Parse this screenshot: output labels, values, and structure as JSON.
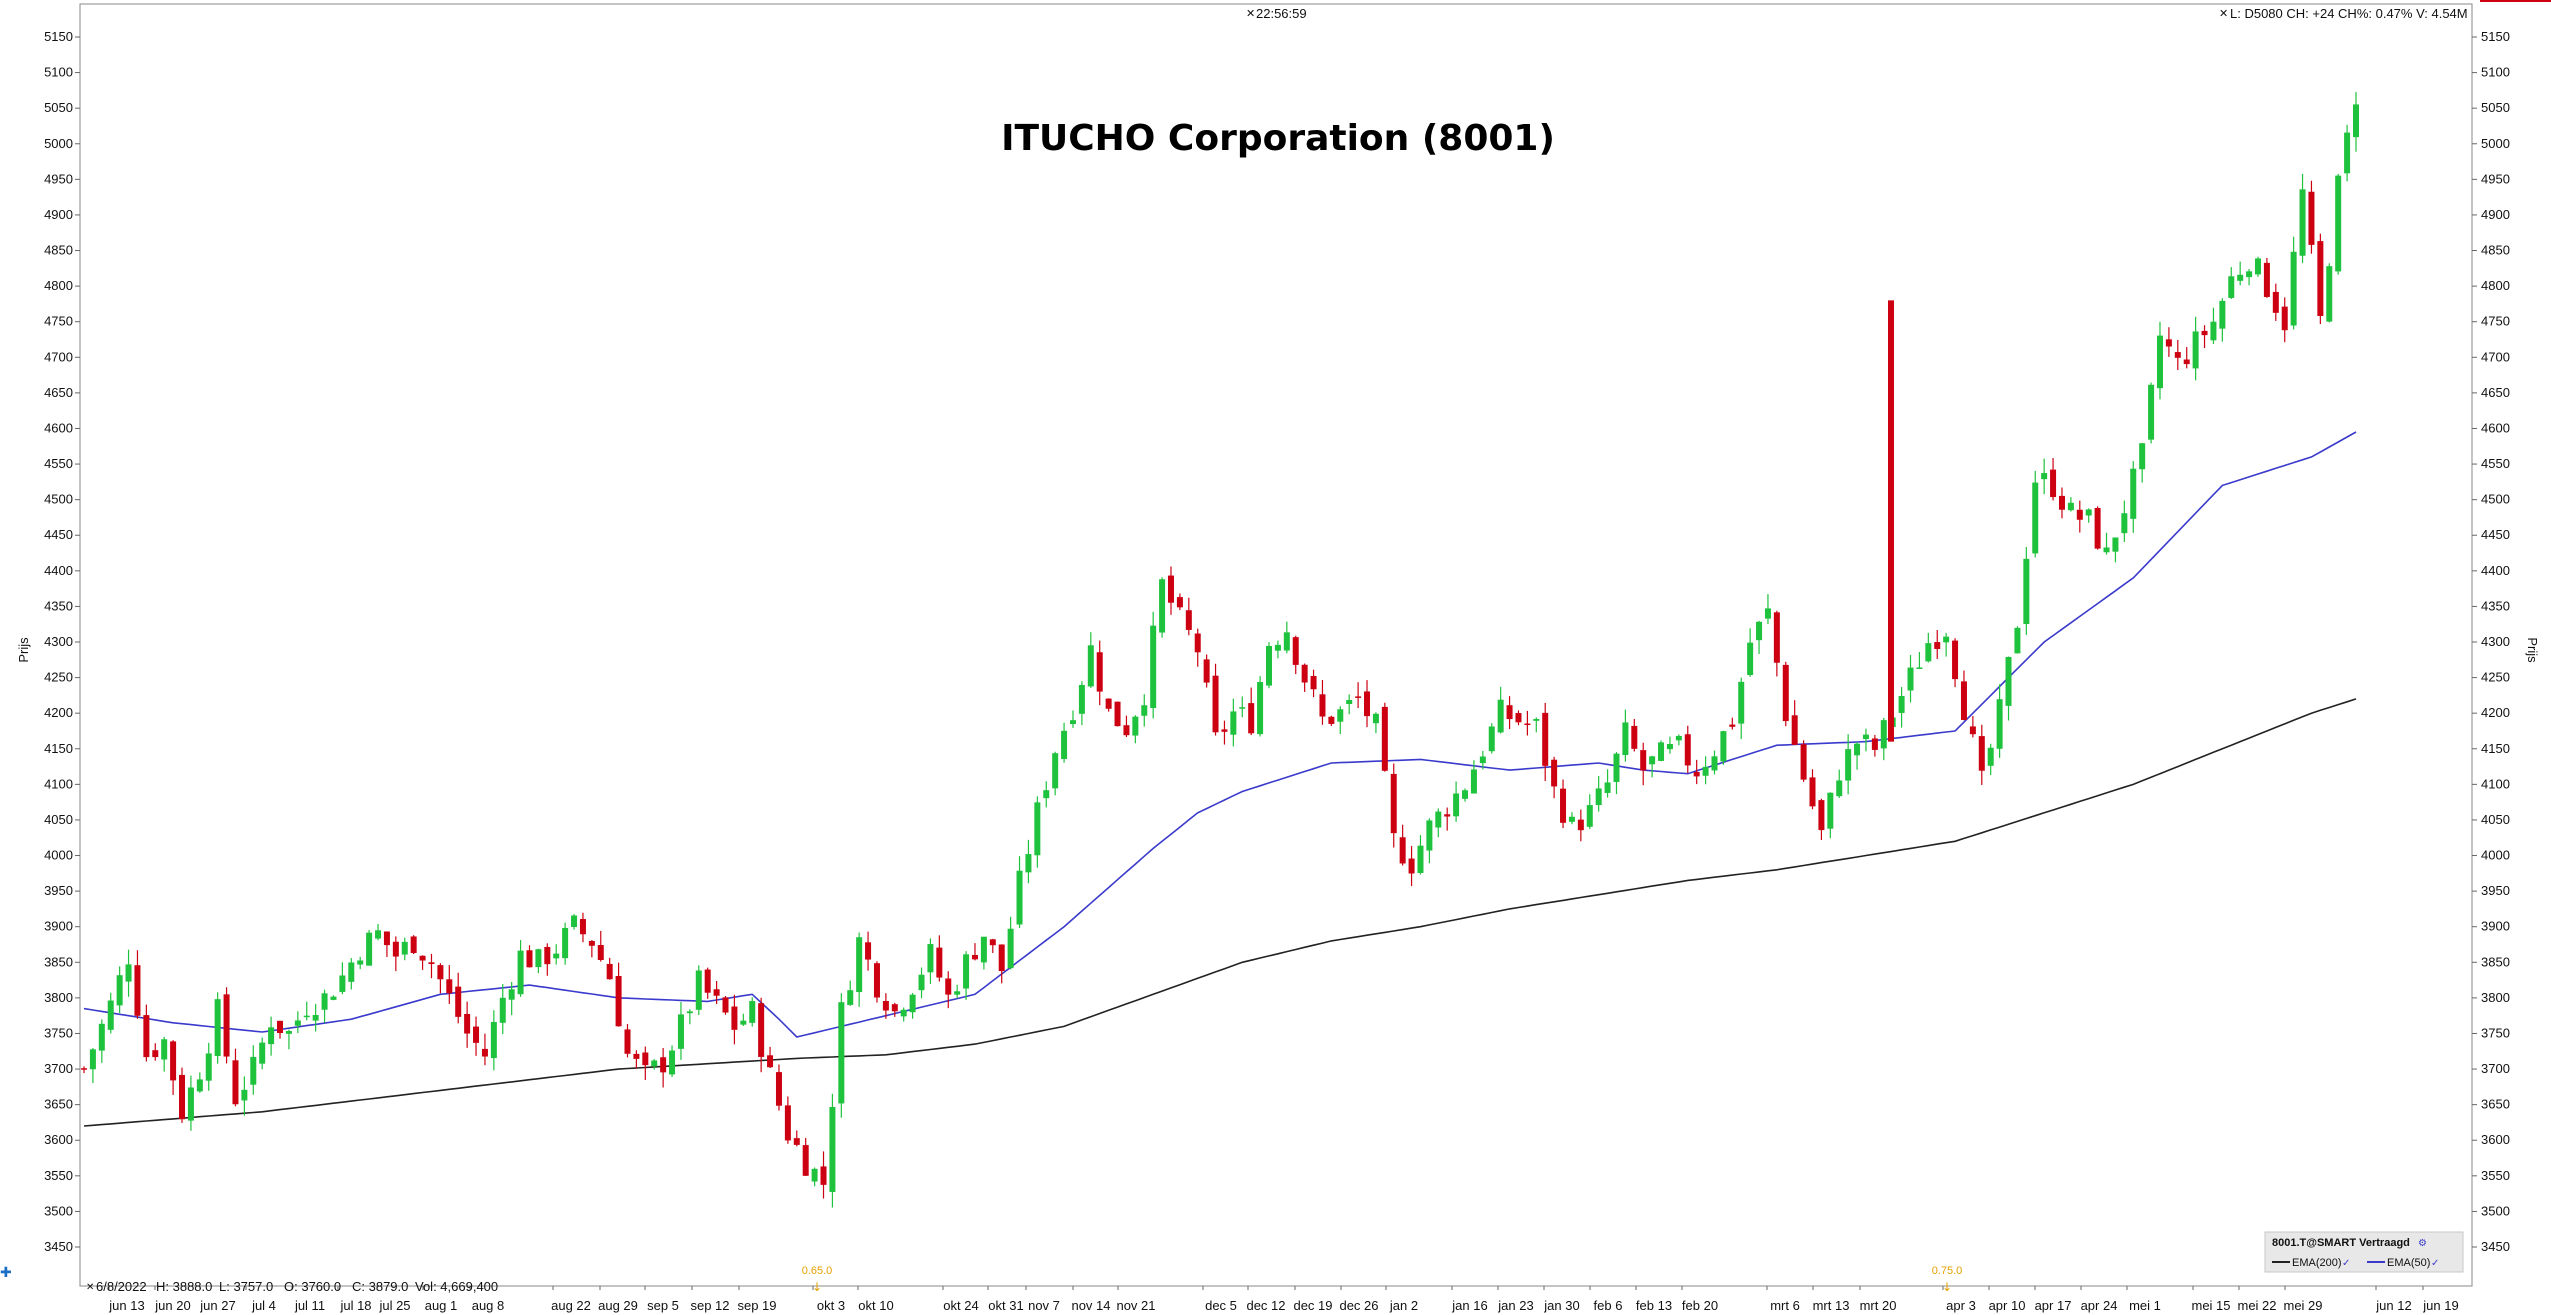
{
  "header": {
    "clock": "22:56:59",
    "quote": "L: D5080 CH: +24 CH%: 0.47% V: 4.54M"
  },
  "info_bar": {
    "date": "6/8/2022",
    "high": "H: 3888.0",
    "low": "L: 3757.0",
    "open": "O: 3760.0",
    "close": "C: 3879.0",
    "volume": "Vol: 4,669,400"
  },
  "legend": {
    "symbol": "8001.T@SMART Vertraagd",
    "ema200": "EMA(200)",
    "ema50": "EMA(50)",
    "ema200_color": "#222222",
    "ema50_color": "#3a3acc"
  },
  "dividend_markers": [
    {
      "label": "0.65.0",
      "x_date": "okt 3"
    },
    {
      "label": "0.75.0",
      "x_date": "apr 3"
    }
  ],
  "chart_data": {
    "type": "candlestick",
    "title": "ITUCHO Corporation (8001)",
    "ylabel": "Prijs",
    "ylim": [
      3410,
      5190
    ],
    "y_ticks": [
      3450,
      3500,
      3550,
      3600,
      3650,
      3700,
      3750,
      3800,
      3850,
      3900,
      3950,
      4000,
      4050,
      4100,
      4150,
      4200,
      4250,
      4300,
      4350,
      4400,
      4450,
      4500,
      4550,
      4600,
      4650,
      4700,
      4750,
      4800,
      4850,
      4900,
      4950,
      5000,
      5050,
      5100,
      5150
    ],
    "x_labels": [
      "jun 13",
      "jun 20",
      "jun 27",
      "jul 4",
      "jul 11",
      "jul 18",
      "jul 25",
      "aug 1",
      "aug 8",
      "aug 22",
      "aug 29",
      "sep 5",
      "sep 12",
      "sep 19",
      "okt 3",
      "okt 10",
      "okt 24",
      "okt 31",
      "nov 7",
      "nov 14",
      "nov 21",
      "dec 5",
      "dec 12",
      "dec 19",
      "dec 26",
      "jan 2",
      "jan 16",
      "jan 23",
      "jan 30",
      "feb 6",
      "feb 13",
      "feb 20",
      "mrt 6",
      "mrt 13",
      "mrt 20",
      "apr 3",
      "apr 10",
      "apr 17",
      "apr 24",
      "mei 1",
      "mei 15",
      "mei 22",
      "mei 29",
      "jun 12",
      "jun 19"
    ],
    "up_color": "#1ec23c",
    "down_color": "#cc0011",
    "close_path": [
      [
        0,
        3700
      ],
      [
        3,
        3790
      ],
      [
        5,
        3860
      ],
      [
        7,
        3720
      ],
      [
        9,
        3740
      ],
      [
        11,
        3640
      ],
      [
        13,
        3700
      ],
      [
        15,
        3780
      ],
      [
        17,
        3660
      ],
      [
        19,
        3700
      ],
      [
        21,
        3770
      ],
      [
        23,
        3750
      ],
      [
        25,
        3790
      ],
      [
        27,
        3800
      ],
      [
        29,
        3830
      ],
      [
        31,
        3870
      ],
      [
        33,
        3890
      ],
      [
        35,
        3860
      ],
      [
        37,
        3880
      ],
      [
        39,
        3850
      ],
      [
        41,
        3800
      ],
      [
        43,
        3750
      ],
      [
        45,
        3720
      ],
      [
        47,
        3800
      ],
      [
        49,
        3860
      ],
      [
        51,
        3850
      ],
      [
        53,
        3870
      ],
      [
        55,
        3900
      ],
      [
        57,
        3880
      ],
      [
        59,
        3830
      ],
      [
        61,
        3720
      ],
      [
        63,
        3690
      ],
      [
        65,
        3710
      ],
      [
        67,
        3760
      ],
      [
        69,
        3820
      ],
      [
        71,
        3790
      ],
      [
        73,
        3760
      ],
      [
        75,
        3780
      ],
      [
        77,
        3690
      ],
      [
        79,
        3610
      ],
      [
        81,
        3570
      ],
      [
        83,
        3540
      ],
      [
        85,
        3780
      ],
      [
        87,
        3880
      ],
      [
        89,
        3820
      ],
      [
        91,
        3780
      ],
      [
        93,
        3820
      ],
      [
        95,
        3860
      ],
      [
        97,
        3800
      ],
      [
        99,
        3850
      ],
      [
        101,
        3890
      ],
      [
        103,
        3840
      ],
      [
        105,
        3960
      ],
      [
        107,
        4060
      ],
      [
        109,
        4150
      ],
      [
        111,
        4210
      ],
      [
        113,
        4290
      ],
      [
        115,
        4200
      ],
      [
        117,
        4180
      ],
      [
        119,
        4230
      ],
      [
        121,
        4380
      ],
      [
        123,
        4330
      ],
      [
        125,
        4290
      ],
      [
        127,
        4160
      ],
      [
        129,
        4200
      ],
      [
        131,
        4190
      ],
      [
        133,
        4300
      ],
      [
        135,
        4320
      ],
      [
        137,
        4250
      ],
      [
        139,
        4190
      ],
      [
        141,
        4200
      ],
      [
        143,
        4220
      ],
      [
        145,
        4180
      ],
      [
        147,
        4020
      ],
      [
        149,
        3990
      ],
      [
        151,
        4040
      ],
      [
        153,
        4070
      ],
      [
        155,
        4100
      ],
      [
        157,
        4150
      ],
      [
        159,
        4200
      ],
      [
        161,
        4190
      ],
      [
        163,
        4180
      ],
      [
        165,
        4090
      ],
      [
        167,
        4040
      ],
      [
        169,
        4060
      ],
      [
        171,
        4100
      ],
      [
        173,
        4170
      ],
      [
        175,
        4120
      ],
      [
        177,
        4140
      ],
      [
        179,
        4150
      ],
      [
        181,
        4120
      ],
      [
        183,
        4150
      ],
      [
        185,
        4190
      ],
      [
        187,
        4300
      ],
      [
        189,
        4340
      ],
      [
        191,
        4200
      ],
      [
        193,
        4110
      ],
      [
        195,
        4030
      ],
      [
        197,
        4120
      ],
      [
        199,
        4160
      ],
      [
        201,
        4150
      ],
      [
        203,
        4200
      ],
      [
        205,
        4250
      ],
      [
        207,
        4300
      ],
      [
        209,
        4320
      ],
      [
        211,
        4210
      ],
      [
        213,
        4100
      ],
      [
        215,
        4200
      ],
      [
        217,
        4330
      ],
      [
        219,
        4530
      ],
      [
        221,
        4520
      ],
      [
        223,
        4480
      ],
      [
        225,
        4470
      ],
      [
        227,
        4420
      ],
      [
        229,
        4490
      ],
      [
        231,
        4560
      ],
      [
        233,
        4730
      ],
      [
        235,
        4690
      ],
      [
        237,
        4720
      ],
      [
        239,
        4750
      ],
      [
        241,
        4810
      ],
      [
        243,
        4840
      ],
      [
        245,
        4800
      ],
      [
        247,
        4750
      ],
      [
        249,
        4930
      ],
      [
        251,
        4750
      ],
      [
        253,
        4940
      ],
      [
        255,
        5070
      ]
    ],
    "series": [
      {
        "name": "EMA(50)",
        "values": [
          [
            0,
            3785
          ],
          [
            10,
            3765
          ],
          [
            20,
            3752
          ],
          [
            30,
            3770
          ],
          [
            40,
            3805
          ],
          [
            50,
            3818
          ],
          [
            60,
            3800
          ],
          [
            70,
            3795
          ],
          [
            75,
            3805
          ],
          [
            78,
            3770
          ],
          [
            80,
            3745
          ],
          [
            85,
            3760
          ],
          [
            90,
            3775
          ],
          [
            100,
            3805
          ],
          [
            110,
            3900
          ],
          [
            120,
            4010
          ],
          [
            125,
            4060
          ],
          [
            130,
            4090
          ],
          [
            140,
            4130
          ],
          [
            150,
            4135
          ],
          [
            160,
            4120
          ],
          [
            170,
            4130
          ],
          [
            175,
            4120
          ],
          [
            180,
            4115
          ],
          [
            190,
            4155
          ],
          [
            200,
            4160
          ],
          [
            210,
            4175
          ],
          [
            220,
            4300
          ],
          [
            230,
            4390
          ],
          [
            240,
            4520
          ],
          [
            250,
            4560
          ],
          [
            255,
            4595
          ]
        ]
      },
      {
        "name": "EMA(200)",
        "values": [
          [
            0,
            3620
          ],
          [
            20,
            3640
          ],
          [
            40,
            3670
          ],
          [
            60,
            3700
          ],
          [
            80,
            3715
          ],
          [
            90,
            3720
          ],
          [
            100,
            3735
          ],
          [
            110,
            3760
          ],
          [
            120,
            3805
          ],
          [
            130,
            3850
          ],
          [
            140,
            3880
          ],
          [
            150,
            3900
          ],
          [
            160,
            3925
          ],
          [
            170,
            3945
          ],
          [
            180,
            3965
          ],
          [
            190,
            3980
          ],
          [
            200,
            4000
          ],
          [
            210,
            4020
          ],
          [
            220,
            4060
          ],
          [
            230,
            4100
          ],
          [
            240,
            4150
          ],
          [
            250,
            4200
          ],
          [
            255,
            4220
          ]
        ]
      }
    ]
  }
}
